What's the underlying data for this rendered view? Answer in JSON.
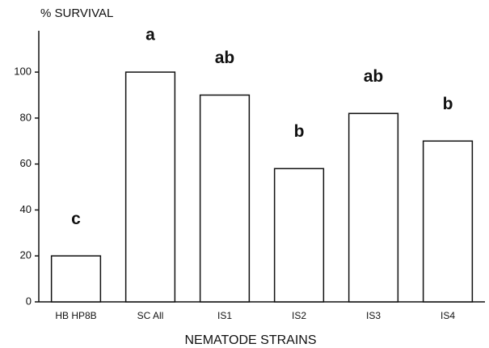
{
  "chart_data": {
    "type": "bar",
    "y_axis_label": "% SURVIVAL",
    "x_axis_label": "NEMATODE STRAINS",
    "categories": [
      "HB HP8B",
      "SC All",
      "IS1",
      "IS2",
      "IS3",
      "IS4"
    ],
    "values": [
      20,
      100,
      90,
      58,
      82,
      70
    ],
    "annotations": [
      "c",
      "a",
      "ab",
      "b",
      "ab",
      "b"
    ],
    "color": "#ffffff",
    "ylim": [
      0,
      118
    ],
    "yticks": [
      0,
      20,
      40,
      60,
      80,
      100
    ],
    "grid": false
  }
}
